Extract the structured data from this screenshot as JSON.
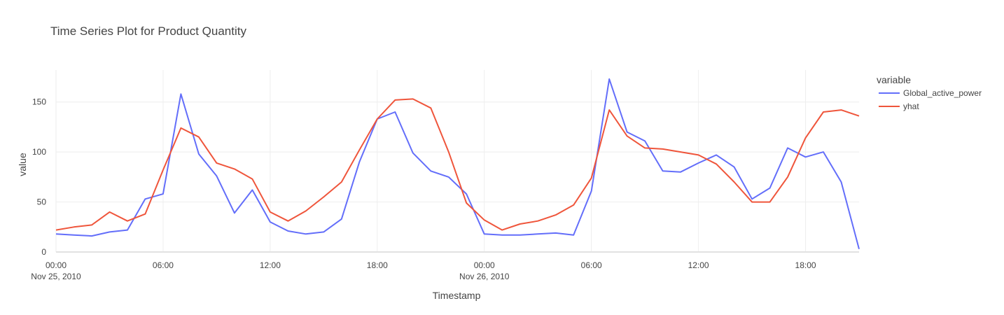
{
  "chart_data": {
    "type": "line",
    "title": "Time Series Plot for Product Quantity",
    "xlabel": "Timestamp",
    "ylabel": "value",
    "legend_title": "variable",
    "legend_position": "top-right",
    "grid": true,
    "ylim": [
      0,
      182
    ],
    "x_start": "2010-11-25 00:00",
    "x_step_hours": 1,
    "x_end": "2010-11-26 21:00",
    "x_ticks": [
      {
        "label": "00:00",
        "sublabel": "Nov 25, 2010",
        "hour": 0
      },
      {
        "label": "06:00",
        "sublabel": "",
        "hour": 6
      },
      {
        "label": "12:00",
        "sublabel": "",
        "hour": 12
      },
      {
        "label": "18:00",
        "sublabel": "",
        "hour": 18
      },
      {
        "label": "00:00",
        "sublabel": "Nov 26, 2010",
        "hour": 24
      },
      {
        "label": "06:00",
        "sublabel": "",
        "hour": 30
      },
      {
        "label": "12:00",
        "sublabel": "",
        "hour": 36
      },
      {
        "label": "18:00",
        "sublabel": "",
        "hour": 42
      }
    ],
    "y_ticks": [
      {
        "label": "0",
        "value": 0
      },
      {
        "label": "50",
        "value": 50
      },
      {
        "label": "100",
        "value": 100
      },
      {
        "label": "150",
        "value": 150
      }
    ],
    "series": [
      {
        "name": "Global_active_power",
        "color": "#636efa",
        "values": [
          18,
          17,
          16,
          20,
          22,
          53,
          58,
          158,
          98,
          76,
          39,
          62,
          30,
          21,
          18,
          20,
          33,
          90,
          133,
          140,
          99,
          81,
          75,
          58,
          18,
          17,
          17,
          18,
          19,
          17,
          61,
          173,
          120,
          111,
          81,
          80,
          89,
          97,
          85,
          53,
          64,
          104,
          95,
          100,
          70,
          3
        ]
      },
      {
        "name": "yhat",
        "color": "#ef553b",
        "values": [
          22,
          25,
          27,
          40,
          31,
          38,
          82,
          124,
          115,
          89,
          83,
          73,
          40,
          31,
          41,
          55,
          70,
          102,
          133,
          152,
          153,
          144,
          100,
          49,
          32,
          22,
          28,
          31,
          37,
          47,
          74,
          142,
          116,
          104,
          103,
          100,
          97,
          88,
          70,
          50,
          50,
          75,
          114,
          140,
          142,
          136
        ]
      }
    ]
  }
}
